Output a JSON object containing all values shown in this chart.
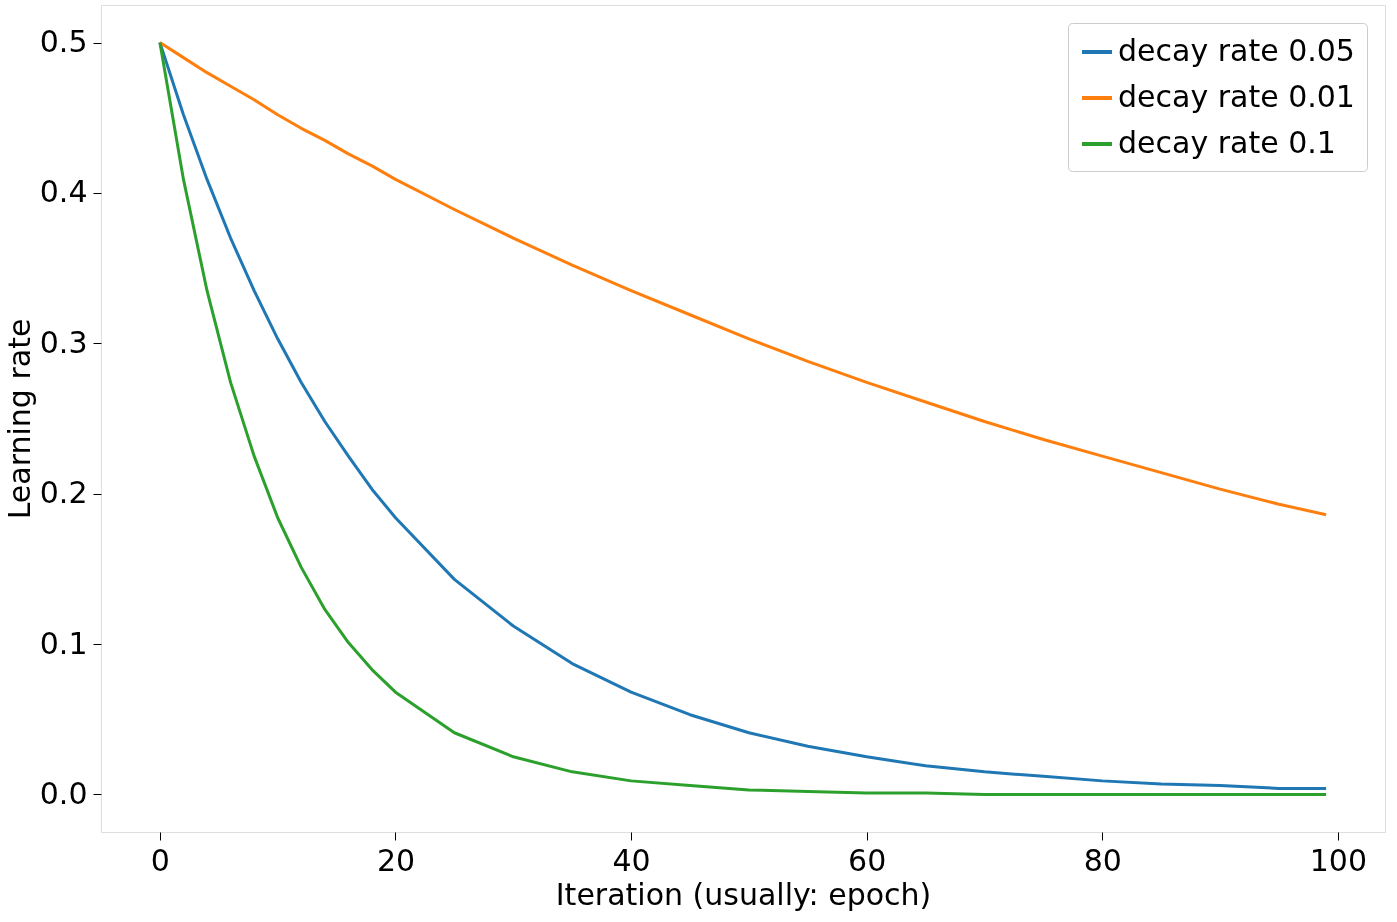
{
  "chart_data": {
    "type": "line",
    "xlabel": "Iteration (usually: epoch)",
    "ylabel": "Learning rate",
    "x": [
      0,
      2,
      4,
      6,
      8,
      10,
      12,
      14,
      16,
      18,
      20,
      25,
      30,
      35,
      40,
      45,
      50,
      55,
      60,
      65,
      70,
      75,
      80,
      85,
      90,
      95,
      99
    ],
    "series": [
      {
        "name": "decay rate 0.05",
        "color": "#1f77b4",
        "values": [
          0.5,
          0.452,
          0.409,
          0.37,
          0.335,
          0.303,
          0.274,
          0.248,
          0.225,
          0.203,
          0.184,
          0.143,
          0.112,
          0.087,
          0.068,
          0.053,
          0.041,
          0.032,
          0.025,
          0.019,
          0.015,
          0.012,
          0.009,
          0.007,
          0.006,
          0.004,
          0.004
        ]
      },
      {
        "name": "decay rate 0.01",
        "color": "#ff7f0e",
        "values": [
          0.5,
          0.49,
          0.48,
          0.471,
          0.462,
          0.452,
          0.443,
          0.435,
          0.426,
          0.418,
          0.409,
          0.389,
          0.37,
          0.352,
          0.335,
          0.319,
          0.303,
          0.288,
          0.274,
          0.261,
          0.248,
          0.236,
          0.225,
          0.214,
          0.203,
          0.193,
          0.186
        ]
      },
      {
        "name": "decay rate 0.1",
        "color": "#2ca02c",
        "values": [
          0.5,
          0.409,
          0.335,
          0.274,
          0.225,
          0.184,
          0.151,
          0.123,
          0.101,
          0.083,
          0.068,
          0.041,
          0.025,
          0.015,
          0.009,
          0.006,
          0.003,
          0.002,
          0.001,
          0.001,
          0.0,
          0.0,
          0.0,
          0.0,
          0.0,
          0.0,
          0.0
        ]
      }
    ],
    "xlim": [
      -5,
      104
    ],
    "ylim": [
      -0.025,
      0.525
    ],
    "xticks": [
      0,
      20,
      40,
      60,
      80,
      100
    ],
    "yticks": [
      {
        "value": 0,
        "label": "0.0"
      },
      0.1,
      0.2,
      0.3,
      0.4,
      0.5
    ],
    "grid": false,
    "legend": "top right",
    "marker": "none",
    "line_style": "solid"
  }
}
